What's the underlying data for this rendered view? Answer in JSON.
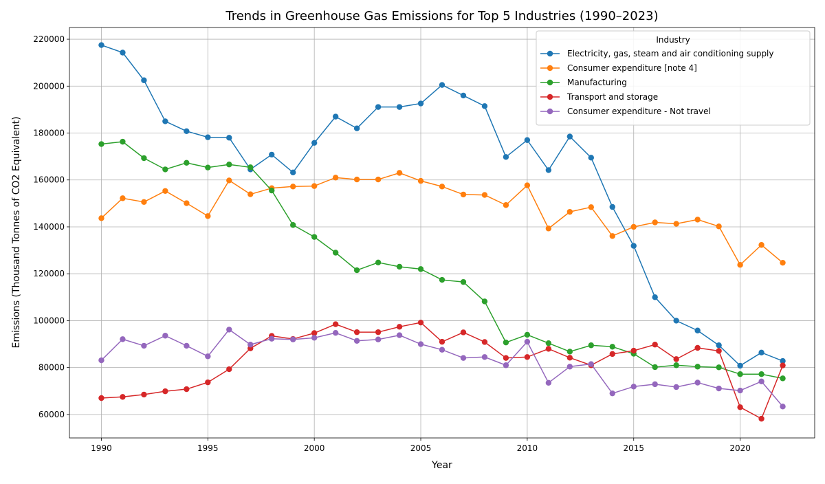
{
  "chart_data": {
    "type": "line",
    "title": "Trends in Greenhouse Gas Emissions for Top 5 Industries (1990–2023)",
    "xlabel": "Year",
    "ylabel": "Emissions (Thousand Tonnes of CO2 Equivalent)",
    "xlim": [
      1988.5,
      2023.5
    ],
    "ylim": [
      50000,
      225000
    ],
    "x_ticks": [
      1990,
      1995,
      2000,
      2005,
      2010,
      2015,
      2020
    ],
    "y_ticks": [
      60000,
      80000,
      100000,
      120000,
      140000,
      160000,
      180000,
      200000,
      220000
    ],
    "grid": true,
    "legend_title": "Industry",
    "legend_position": "top-right",
    "x": [
      1990,
      1991,
      1992,
      1993,
      1994,
      1995,
      1996,
      1997,
      1998,
      1999,
      2000,
      2001,
      2002,
      2003,
      2004,
      2005,
      2006,
      2007,
      2008,
      2009,
      2010,
      2011,
      2012,
      2013,
      2014,
      2015,
      2016,
      2017,
      2018,
      2019,
      2020,
      2021,
      2022
    ],
    "series": [
      {
        "name": "Electricity, gas, steam and air conditioning supply",
        "color": "#1f77b4",
        "values": [
          217500,
          214300,
          202500,
          185000,
          180800,
          178200,
          178000,
          164500,
          170800,
          163200,
          175800,
          187000,
          182000,
          191100,
          191100,
          192600,
          200500,
          196000,
          191500,
          169800,
          177000,
          164200,
          178500,
          169500,
          148500,
          131900,
          110000,
          100000,
          95800,
          89500,
          80800,
          86400,
          82800
        ]
      },
      {
        "name": "Consumer expenditure [note 4]",
        "color": "#ff7f0e",
        "values": [
          143700,
          152200,
          150600,
          155300,
          150100,
          144600,
          159800,
          153900,
          156500,
          157200,
          157400,
          161000,
          160200,
          160200,
          163000,
          159600,
          157200,
          153800,
          153600,
          149300,
          157700,
          139300,
          146400,
          148400,
          136100,
          140000,
          141900,
          141300,
          143100,
          140200,
          123800,
          132300,
          124700
        ]
      },
      {
        "name": "Manufacturing",
        "color": "#2ca02c",
        "values": [
          175300,
          176300,
          169300,
          164500,
          167300,
          165300,
          166600,
          165400,
          155500,
          140800,
          135700,
          129000,
          121500,
          124800,
          123000,
          122000,
          117400,
          116500,
          108200,
          90700,
          94000,
          90400,
          86800,
          89500,
          88900,
          85900,
          80200,
          81000,
          80400,
          80100,
          77200,
          77200,
          75400
        ]
      },
      {
        "name": "Transport and storage",
        "color": "#d62728",
        "values": [
          67000,
          67500,
          68500,
          69900,
          70800,
          73700,
          79300,
          88200,
          93500,
          92200,
          94700,
          98500,
          95100,
          95100,
          97400,
          99200,
          91000,
          95000,
          90900,
          84100,
          84500,
          88000,
          84200,
          81000,
          85800,
          87200,
          89800,
          83600,
          88400,
          87100,
          63100,
          58200,
          80900
        ]
      },
      {
        "name": "Consumer expenditure - Not travel",
        "color": "#9467bd",
        "values": [
          83100,
          92100,
          89300,
          93600,
          89300,
          84800,
          96200,
          89800,
          92300,
          92000,
          92700,
          94800,
          91400,
          92000,
          93800,
          90000,
          87600,
          84100,
          84500,
          81000,
          91000,
          73500,
          80400,
          81500,
          69000,
          71900,
          72900,
          71700,
          73600,
          71100,
          70200,
          74100,
          63400
        ]
      }
    ]
  }
}
